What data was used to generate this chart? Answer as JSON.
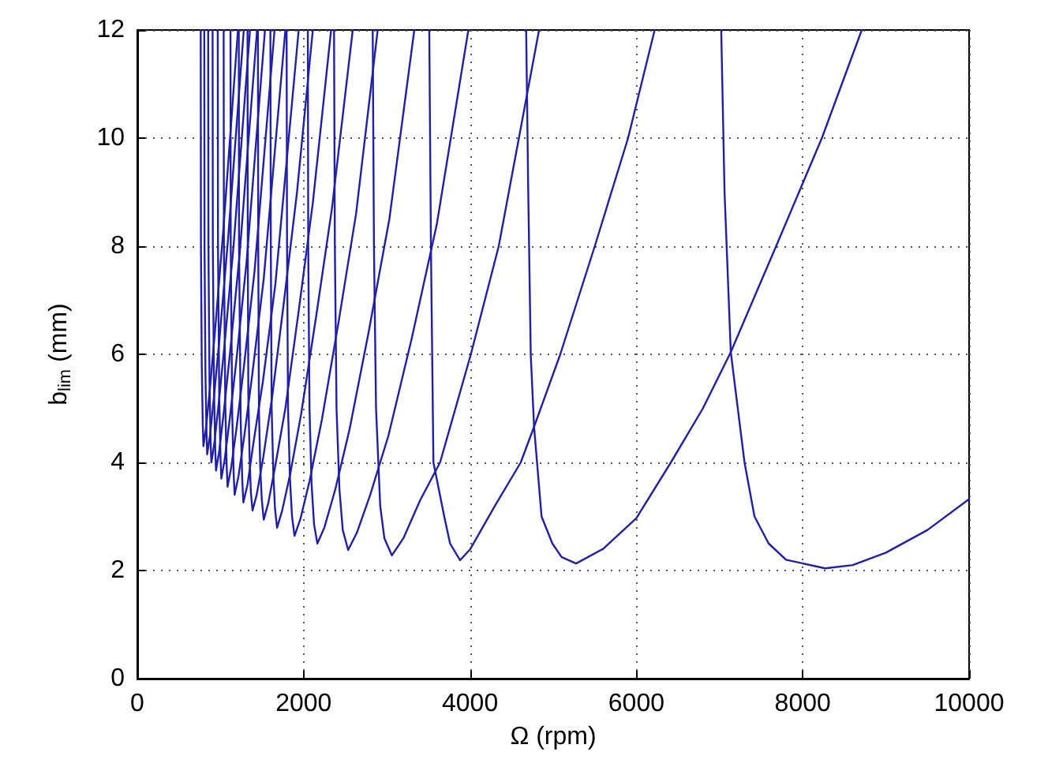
{
  "chart_data": {
    "type": "line",
    "xlabel": "Ω (rpm)",
    "ylabel": "b$_{lim}$ (mm)",
    "xlim": [
      0,
      10000
    ],
    "xticks": [
      0,
      2000,
      4000,
      6000,
      8000,
      10000
    ],
    "ylim": [
      0,
      12
    ],
    "yticks": [
      0,
      2,
      4,
      6,
      8,
      10,
      12
    ],
    "grid": true,
    "marker": "none",
    "line_style": "solid",
    "series": [
      {
        "color": "#1f1fa8",
        "x": [
          7020,
          7060,
          7135,
          7300,
          7420,
          7590,
          7800,
          8270,
          8600,
          9000,
          9500,
          10000
        ],
        "values": [
          12,
          9,
          6.04,
          4,
          3,
          2.5,
          2.2,
          2.04,
          2.1,
          2.33,
          2.75,
          3.32
        ]
      },
      {
        "color": "#1f1fa8",
        "x": [
          4675,
          4700,
          4730,
          4770,
          4860,
          4990,
          5100,
          5275,
          5600,
          6000,
          6415,
          6800,
          7135,
          7680,
          8230,
          8710
        ],
        "values": [
          12,
          9,
          6,
          4.66,
          3,
          2.5,
          2.25,
          2.13,
          2.4,
          2.97,
          4,
          5,
          6.04,
          8,
          10,
          12
        ]
      },
      {
        "color": "#1f1fa8",
        "x": [
          3510,
          3530,
          3560,
          3690,
          3760,
          3880,
          4000,
          4300,
          4610,
          4770,
          5085,
          5500,
          5900,
          6220
        ],
        "values": [
          12,
          8,
          4,
          3,
          2.5,
          2.19,
          2.39,
          3.2,
          4,
          4.66,
          6,
          8,
          10,
          12
        ]
      },
      {
        "color": "#1f1fa8",
        "x": [
          2830,
          2845,
          2870,
          2920,
          2970,
          3060,
          3200,
          3400,
          3640,
          4010,
          4345,
          4830
        ],
        "values": [
          12,
          8,
          5,
          3.2,
          2.6,
          2.28,
          2.6,
          3.3,
          4,
          6,
          8,
          12
        ]
      },
      {
        "color": "#1f1fa8",
        "x": [
          2365,
          2375,
          2395,
          2430,
          2470,
          2535,
          2640,
          2800,
          3020,
          3300,
          3600,
          3980
        ],
        "values": [
          12,
          8,
          5,
          3.5,
          2.75,
          2.38,
          2.7,
          3.4,
          4.5,
          6.3,
          8.4,
          12
        ]
      },
      {
        "color": "#1f1fa8",
        "x": [
          2050,
          2055,
          2070,
          2095,
          2125,
          2165,
          2250,
          2380,
          2550,
          2780,
          3030,
          3330
        ],
        "values": [
          12,
          8,
          5,
          3.6,
          2.85,
          2.5,
          2.8,
          3.5,
          4.6,
          6.4,
          8.5,
          12
        ]
      },
      {
        "color": "#1f1fa8",
        "x": [
          1795,
          1800,
          1812,
          1835,
          1860,
          1890,
          1960,
          2070,
          2220,
          2420,
          2630,
          2890
        ],
        "values": [
          12,
          8,
          5,
          3.7,
          3,
          2.64,
          2.95,
          3.65,
          4.8,
          6.6,
          8.6,
          12
        ]
      },
      {
        "color": "#1f1fa8",
        "x": [
          1600,
          1605,
          1615,
          1635,
          1655,
          1680,
          1740,
          1840,
          1970,
          2150,
          2340,
          2590
        ],
        "values": [
          12,
          8,
          5,
          3.8,
          3.15,
          2.79,
          3.1,
          3.8,
          4.9,
          6.7,
          8.7,
          12
        ]
      },
      {
        "color": "#1f1fa8",
        "x": [
          1450,
          1454,
          1462,
          1478,
          1497,
          1520,
          1575,
          1660,
          1780,
          1940,
          2110,
          2330
        ],
        "values": [
          12,
          8,
          5,
          3.9,
          3.3,
          2.94,
          3.25,
          3.95,
          5,
          6.8,
          8.8,
          12
        ]
      },
      {
        "color": "#1f1fa8",
        "x": [
          1325,
          1328,
          1335,
          1350,
          1365,
          1385,
          1435,
          1515,
          1620,
          1765,
          1920,
          2110
        ],
        "values": [
          12,
          8,
          5.2,
          4.1,
          3.45,
          3.11,
          3.4,
          4.1,
          5.2,
          7,
          9,
          12
        ]
      },
      {
        "color": "#1f1fa8",
        "x": [
          1220,
          1223,
          1243,
          1262,
          1275,
          1326,
          1400,
          1510,
          1660,
          1940
        ],
        "values": [
          12,
          8,
          4.76,
          3.66,
          3.26,
          3.6,
          4.4,
          5.5,
          7.3,
          12
        ]
      },
      {
        "color": "#1f1fa8",
        "x": [
          1120,
          1123,
          1141,
          1158,
          1170,
          1217,
          1287,
          1380,
          1520,
          1780
        ],
        "values": [
          12,
          8,
          4.9,
          3.8,
          3.4,
          3.75,
          4.5,
          5.6,
          7.4,
          12
        ]
      },
      {
        "color": "#1f1fa8",
        "x": [
          1038,
          1041,
          1058,
          1074,
          1085,
          1128,
          1194,
          1280,
          1410,
          1650
        ],
        "values": [
          12,
          8,
          5.05,
          3.95,
          3.55,
          3.9,
          4.65,
          5.75,
          7.55,
          12
        ]
      },
      {
        "color": "#1f1fa8",
        "x": [
          967,
          970,
          985,
          1000,
          1010,
          1050,
          1111,
          1192,
          1313,
          1535
        ],
        "values": [
          12,
          8,
          5.2,
          4.1,
          3.7,
          4.05,
          4.8,
          5.9,
          7.7,
          12
        ]
      },
      {
        "color": "#1f1fa8",
        "x": [
          905,
          908,
          922,
          937,
          946,
          984,
          1041,
          1116,
          1230,
          1440
        ],
        "values": [
          12,
          8,
          5.35,
          4.25,
          3.85,
          4.2,
          4.95,
          6.05,
          7.85,
          12
        ]
      },
      {
        "color": "#1f1fa8",
        "x": [
          852,
          855,
          868,
          881,
          890,
          926,
          979,
          1050,
          1157,
          1355
        ],
        "values": [
          12,
          8,
          5.5,
          4.4,
          4,
          4.35,
          5.1,
          6.2,
          8,
          12
        ]
      },
      {
        "color": "#1f1fa8",
        "x": [
          805,
          808,
          819,
          832,
          840,
          874,
          924,
          991,
          1092,
          1280
        ],
        "values": [
          12,
          8,
          5.65,
          4.55,
          4.15,
          4.5,
          5.25,
          6.35,
          8.15,
          12
        ]
      },
      {
        "color": "#1f1fa8",
        "x": [
          762,
          765,
          775,
          787,
          795,
          827,
          875,
          938,
          1034,
          1210
        ],
        "values": [
          12,
          8,
          5.8,
          4.7,
          4.3,
          4.65,
          5.4,
          6.5,
          8.3,
          12
        ]
      }
    ]
  }
}
